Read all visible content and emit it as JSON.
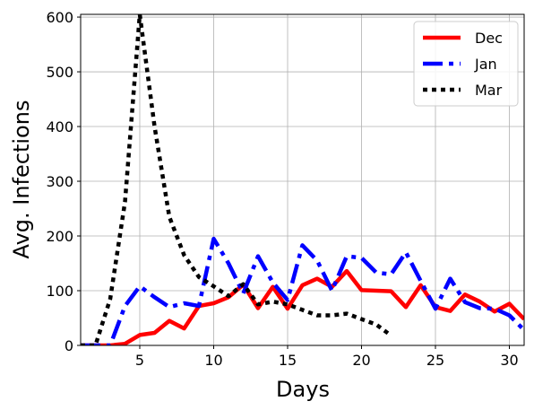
{
  "chart_data": {
    "type": "line",
    "xlabel": "Days",
    "ylabel": "Avg. Infections",
    "xlim": [
      1,
      31
    ],
    "ylim": [
      0,
      605
    ],
    "xticks": [
      5,
      10,
      15,
      20,
      25,
      30
    ],
    "yticks": [
      0,
      100,
      200,
      300,
      400,
      500,
      600
    ],
    "grid": true,
    "legend_position": "top-right",
    "series": [
      {
        "name": "Dec",
        "color": "#ff0000",
        "style": "solid",
        "x": [
          1,
          2,
          3,
          4,
          5,
          6,
          7,
          8,
          9,
          10,
          11,
          12,
          13,
          14,
          15,
          16,
          17,
          18,
          19,
          20,
          21,
          22,
          23,
          24,
          25,
          26,
          27,
          28,
          29,
          30,
          31
        ],
        "y": [
          0,
          0,
          0,
          3,
          19,
          23,
          45,
          31,
          72,
          77,
          88,
          111,
          68,
          107,
          67,
          110,
          122,
          107,
          136,
          101,
          100,
          99,
          70,
          110,
          70,
          63,
          93,
          80,
          62,
          76,
          48
        ]
      },
      {
        "name": "Jan",
        "color": "#0000ff",
        "style": "dashdot",
        "x": [
          1,
          2,
          3,
          4,
          5,
          6,
          7,
          8,
          9,
          10,
          11,
          12,
          13,
          14,
          15,
          16,
          17,
          18,
          19,
          20,
          21,
          22,
          23,
          24,
          25,
          26,
          27,
          28,
          29,
          30,
          31
        ],
        "y": [
          0,
          0,
          0,
          72,
          108,
          88,
          70,
          77,
          72,
          195,
          150,
          95,
          163,
          115,
          83,
          183,
          155,
          100,
          163,
          160,
          133,
          130,
          170,
          118,
          67,
          122,
          79,
          68,
          67,
          55,
          28
        ]
      },
      {
        "name": "Mar",
        "color": "#000000",
        "style": "dotted",
        "x": [
          1,
          2,
          3,
          4,
          5,
          6,
          7,
          8,
          9,
          10,
          11,
          12,
          13,
          14,
          15,
          16,
          17,
          18,
          19,
          20,
          21,
          22
        ],
        "y": [
          0,
          0,
          85,
          262,
          605,
          400,
          235,
          165,
          125,
          108,
          90,
          112,
          75,
          80,
          75,
          65,
          55,
          55,
          58,
          48,
          38,
          18
        ]
      }
    ]
  }
}
